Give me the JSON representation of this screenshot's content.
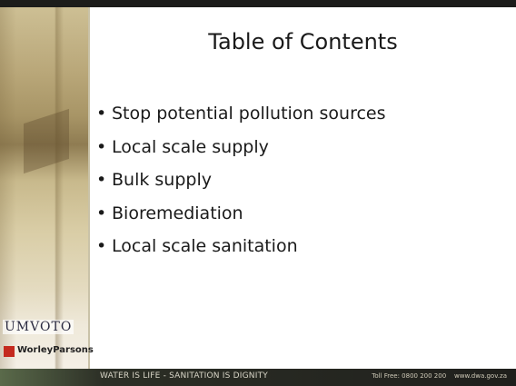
{
  "slide": {
    "title": "Table of Contents",
    "bullets": [
      "Stop potential pollution sources",
      "Local scale supply",
      "Bulk supply",
      "Bioremediation",
      "Local scale sanitation"
    ],
    "logos": [
      "UMVOTO",
      "WorleyParsons"
    ],
    "footer": {
      "motto": "WATER IS LIFE - SANITATION IS DIGNITY",
      "contact": "Toll Free: 0800 200 200    www.dwa.gov.za"
    }
  }
}
